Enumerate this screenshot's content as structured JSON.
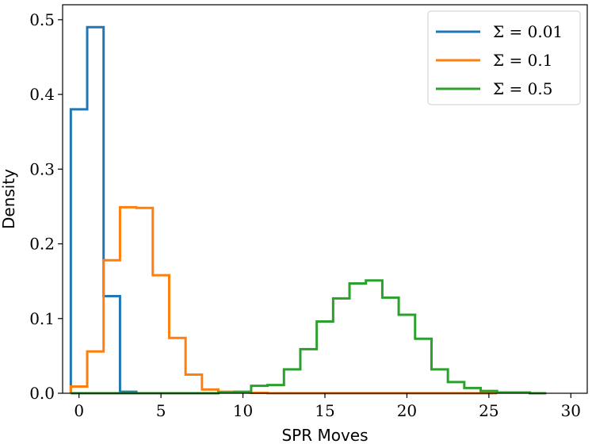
{
  "chart_data": {
    "type": "histogram",
    "xlabel": "SPR Moves",
    "ylabel": "Density",
    "xlim": [
      -1,
      31
    ],
    "ylim": [
      0,
      0.52
    ],
    "x_ticks": [
      0,
      5,
      10,
      15,
      20,
      25,
      30
    ],
    "x_tick_labels": [
      "0",
      "5",
      "10",
      "15",
      "20",
      "25",
      "30"
    ],
    "y_ticks": [
      0.0,
      0.1,
      0.2,
      0.3,
      0.4,
      0.5
    ],
    "y_tick_labels": [
      "0.0",
      "0.1",
      "0.2",
      "0.3",
      "0.4",
      "0.5"
    ],
    "grid": false,
    "legend_position": "top-right",
    "series": [
      {
        "name": "Σ = 0.01",
        "color": "#1f77b4",
        "bin_edges": [
          -0.5,
          0.5,
          1.5,
          2.5,
          3.5
        ],
        "values": [
          0.38,
          0.49,
          0.13,
          0.002
        ]
      },
      {
        "name": "Σ = 0.1",
        "color": "#ff7f0e",
        "bin_edges": [
          -0.5,
          0.5,
          1.5,
          2.5,
          3.5,
          4.5,
          5.5,
          6.5,
          7.5,
          8.5,
          9.5,
          10.5,
          11.5,
          12.5,
          13.5,
          14.5,
          15.5,
          16.5,
          17.5,
          18.5,
          19.5,
          20.5,
          21.5,
          22.5,
          23.5,
          24.5,
          25.5
        ],
        "values": [
          0.009,
          0.056,
          0.178,
          0.249,
          0.248,
          0.158,
          0.074,
          0.025,
          0.005,
          0.002,
          0.001,
          0.0005,
          0,
          0,
          0,
          0,
          0,
          0,
          0,
          0,
          0,
          0,
          0,
          0,
          0,
          0
        ]
      },
      {
        "name": "Σ = 0.5",
        "color": "#2ca02c",
        "bin_edges": [
          -0.5,
          0.5,
          1.5,
          2.5,
          3.5,
          4.5,
          5.5,
          6.5,
          7.5,
          8.5,
          9.5,
          10.5,
          11.5,
          12.5,
          13.5,
          14.5,
          15.5,
          16.5,
          17.5,
          18.5,
          19.5,
          20.5,
          21.5,
          22.5,
          23.5,
          24.5,
          25.5,
          26.5,
          27.5,
          28.5
        ],
        "values": [
          0,
          0,
          0,
          0,
          0,
          0,
          0,
          0,
          0,
          0.001,
          0.002,
          0.01,
          0.011,
          0.032,
          0.059,
          0.096,
          0.127,
          0.147,
          0.151,
          0.128,
          0.105,
          0.073,
          0.032,
          0.015,
          0.007,
          0.003,
          0.001,
          0.001,
          0
        ]
      }
    ]
  }
}
